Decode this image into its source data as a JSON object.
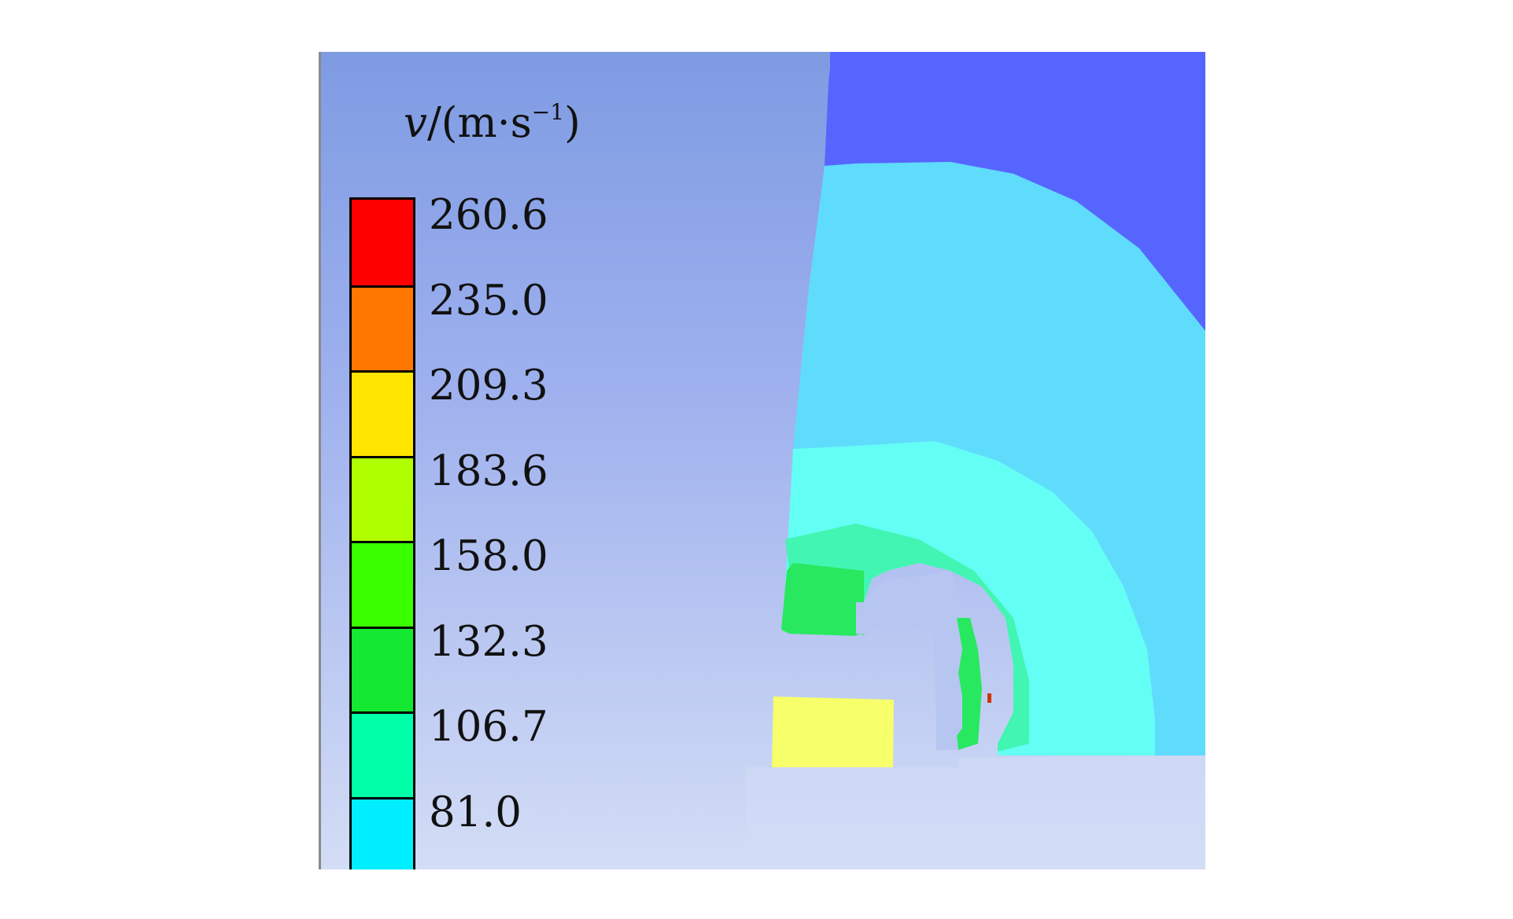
{
  "legend": {
    "title_var": "v",
    "title_unit": "/(m·s",
    "title_exp": "−1",
    "title_close": ")",
    "levels": [
      "260.6",
      "235.0",
      "209.3",
      "183.6",
      "158.0",
      "132.3",
      "106.7",
      "81.0"
    ],
    "colors": [
      "#ff0000",
      "#ff7700",
      "#ffe500",
      "#b0ff00",
      "#3aff00",
      "#15e830",
      "#00ffa8",
      "#00eeff"
    ]
  },
  "field_colors": {
    "background": "#8fa6ea",
    "top_region": "#5765ff",
    "outer_band": "#5fdcfc",
    "inner_band": "#63fff4",
    "green_patch": "#28e860",
    "yellow_patch": "#f7ff6a",
    "ground": "#d4ddf6"
  }
}
